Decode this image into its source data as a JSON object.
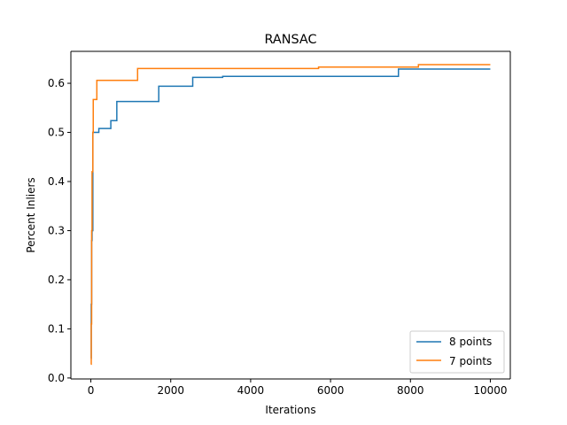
{
  "chart_data": {
    "type": "line",
    "title": "RANSAC",
    "xlabel": "Iterations",
    "ylabel": "Percent Inliers",
    "xlim": [
      -500,
      10500
    ],
    "ylim": [
      -0.002,
      0.665
    ],
    "xticks": [
      0,
      2000,
      4000,
      6000,
      8000,
      10000
    ],
    "yticks": [
      0.0,
      0.1,
      0.2,
      0.3,
      0.4,
      0.5,
      0.6
    ],
    "xtick_labels": [
      "0",
      "2000",
      "4000",
      "6000",
      "8000",
      "10000"
    ],
    "ytick_labels": [
      "0.0",
      "0.1",
      "0.2",
      "0.3",
      "0.4",
      "0.5",
      "0.6"
    ],
    "grid": false,
    "legend_position": "bottom-right",
    "series": [
      {
        "name": "8 points",
        "color": "#1f77b4",
        "step": true,
        "x": [
          0,
          10,
          20,
          30,
          50,
          60,
          200,
          500,
          650,
          1700,
          2550,
          3300,
          7700,
          10000
        ],
        "y": [
          0.04,
          0.15,
          0.28,
          0.3,
          0.5,
          0.5,
          0.508,
          0.524,
          0.563,
          0.594,
          0.612,
          0.614,
          0.629,
          0.629
        ]
      },
      {
        "name": "7 points",
        "color": "#ff7f0e",
        "step": true,
        "x": [
          0,
          10,
          20,
          30,
          50,
          60,
          150,
          1170,
          5700,
          8200,
          10000
        ],
        "y": [
          0.028,
          0.11,
          0.3,
          0.42,
          0.5,
          0.567,
          0.606,
          0.63,
          0.633,
          0.638,
          0.638
        ]
      }
    ]
  }
}
